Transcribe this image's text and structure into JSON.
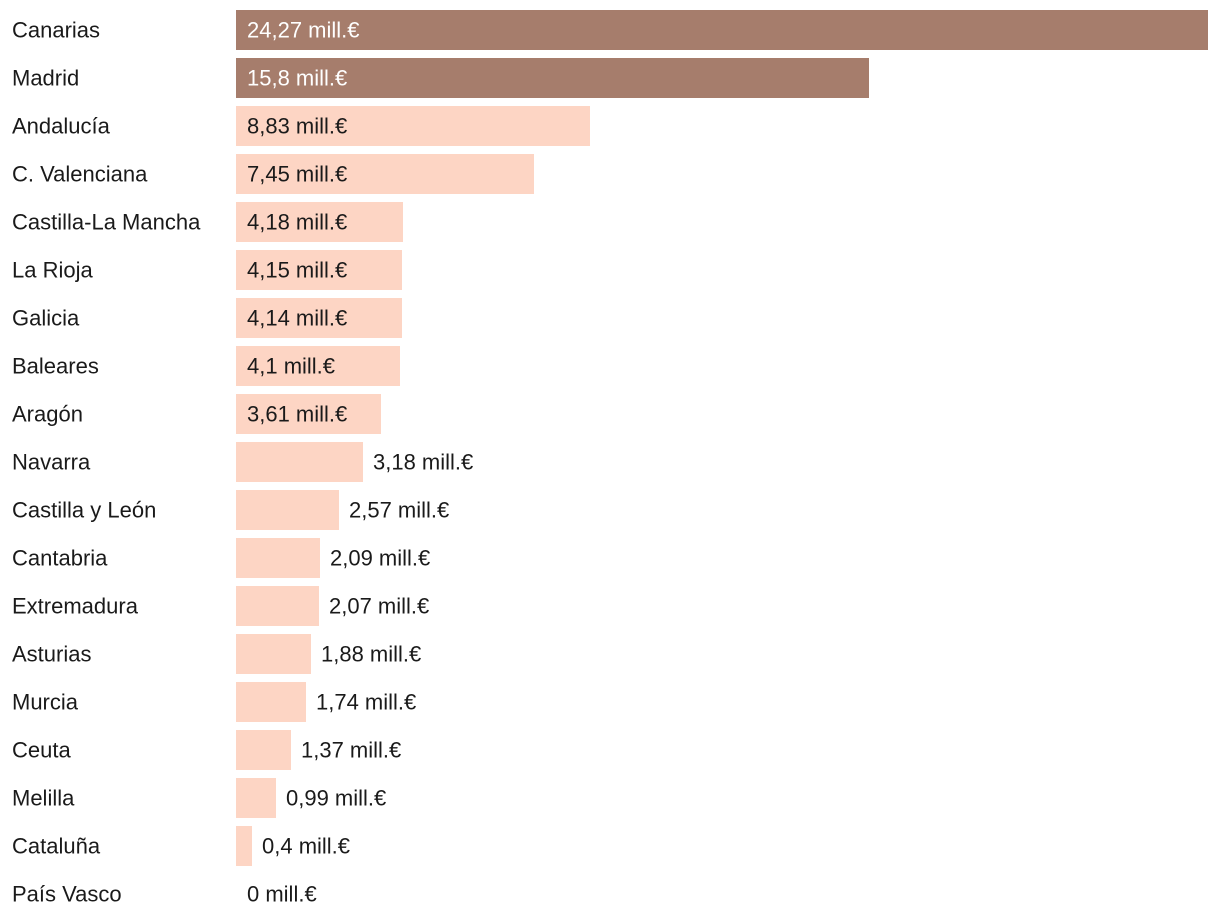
{
  "chart_data": {
    "type": "bar",
    "orientation": "horizontal",
    "unit": "mill.€",
    "xlim": [
      0,
      24.27
    ],
    "categories": [
      "Canarias",
      "Madrid",
      "Andalucía",
      "C. Valenciana",
      "Castilla-La Mancha",
      "La Rioja",
      "Galicia",
      "Baleares",
      "Aragón",
      "Navarra",
      "Castilla y León",
      "Cantabria",
      "Extremadura",
      "Asturias",
      "Murcia",
      "Ceuta",
      "Melilla",
      "Cataluña",
      "País Vasco"
    ],
    "values": [
      24.27,
      15.8,
      8.83,
      7.45,
      4.18,
      4.15,
      4.14,
      4.1,
      3.61,
      3.18,
      2.57,
      2.09,
      2.07,
      1.88,
      1.74,
      1.37,
      0.99,
      0.4,
      0
    ],
    "value_labels": [
      "24,27 mill.€",
      "15,8 mill.€",
      "8,83 mill.€",
      "7,45 mill.€",
      "4,18 mill.€",
      "4,15 mill.€",
      "4,14 mill.€",
      "4,1 mill.€",
      "3,61 mill.€",
      "3,18 mill.€",
      "2,57 mill.€",
      "2,09 mill.€",
      "2,07 mill.€",
      "1,88 mill.€",
      "1,74 mill.€",
      "1,37 mill.€",
      "0,99 mill.€",
      "0,4 mill.€",
      "0 mill.€"
    ],
    "highlight_count": 2,
    "colors": {
      "highlight": "#a67d6c",
      "normal": "#fdd5c4",
      "label_on_dark": "#ffffff",
      "label_on_light": "#1a1a1a"
    }
  }
}
